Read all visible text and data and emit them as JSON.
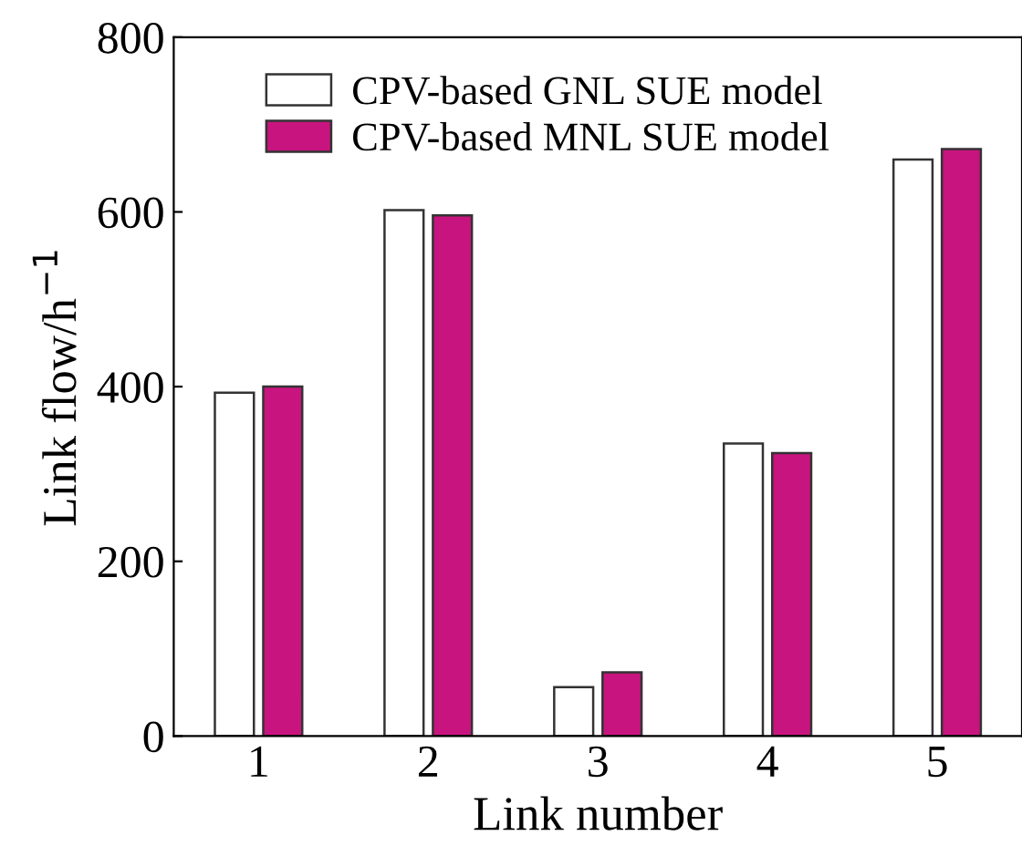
{
  "chart_data": {
    "type": "bar",
    "xlabel": "Link number",
    "ylabel": "Link flow/h$^{−1}$",
    "categories": [
      "1",
      "2",
      "3",
      "4",
      "5"
    ],
    "series": [
      {
        "name": "CPV-based GNL SUE model",
        "color": "#ffffff",
        "values": [
          393,
          602,
          56,
          335,
          660
        ]
      },
      {
        "name": "CPV-based MNL SUE model",
        "color": "#c8147f",
        "values": [
          400,
          596,
          73,
          324,
          672
        ]
      }
    ],
    "ylim": [
      0,
      800
    ],
    "yticks": [
      0,
      200,
      400,
      600,
      800
    ],
    "grid": false,
    "legend": "top"
  }
}
